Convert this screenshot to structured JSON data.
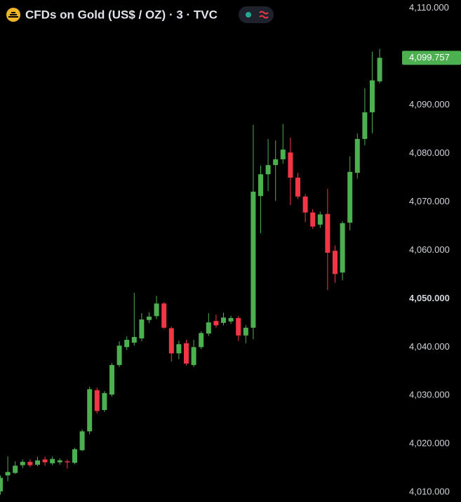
{
  "chart_data": {
    "type": "candlestick",
    "title": "CFDs on Gold (US$ / OZ) · 3 · TVC",
    "up_color": "#4caf50",
    "down_color": "#f23645",
    "ylim": [
      4008,
      4111.7
    ],
    "yticks": [
      {
        "value": 4110,
        "label": "4,110.000"
      },
      {
        "value": 4100,
        "label": "4,100.000"
      },
      {
        "value": 4090,
        "label": "4,090.000"
      },
      {
        "value": 4080,
        "label": "4,080.000"
      },
      {
        "value": 4070,
        "label": "4,070.000"
      },
      {
        "value": 4060,
        "label": "4,060.000"
      },
      {
        "value": 4050,
        "label": "4,050.000"
      },
      {
        "value": 4040,
        "label": "4,040.000"
      },
      {
        "value": 4030,
        "label": "4,030.000"
      },
      {
        "value": 4020,
        "label": "4,020.000"
      },
      {
        "value": 4010,
        "label": "4,010.000"
      }
    ],
    "last_price": {
      "value": 4099.757,
      "label": "4,099.757"
    },
    "open": [
      4010.2,
      4013.5,
      4014.0,
      4015.6,
      4016.3,
      4015.7,
      4016.8,
      4016.0,
      4016.2,
      4016.4,
      4016.1,
      4018.7,
      4022.6,
      4031.1,
      4027.0,
      4030.2,
      4036.3,
      4040.0,
      4040.9,
      4041.8,
      4045.6,
      4046.4,
      4049.0,
      4043.9,
      4038.7,
      4040.8,
      4036.3,
      4040.0,
      4042.8,
      4045.4,
      4045.0,
      4045.3,
      4046.0,
      4042.4,
      4044.0,
      4071.2,
      4075.7,
      4077.6,
      4078.8,
      4080.2,
      4075.0,
      4071.1,
      4067.8,
      4065.3,
      4067.5,
      4059.9,
      4055.4,
      4065.7,
      4076.0,
      4083.0,
      4088.5,
      4094.9
    ],
    "high": [
      4013.5,
      4017.4,
      4016.4,
      4016.8,
      4016.8,
      4017.3,
      4017.4,
      4017.4,
      4017.0,
      4016.8,
      4019.2,
      4023.0,
      4031.8,
      4031.6,
      4030.9,
      4036.7,
      4041.2,
      4042.2,
      4051.2,
      4047.0,
      4047.2,
      4050.6,
      4049.3,
      4044.2,
      4041.3,
      4041.5,
      4041.5,
      4043.3,
      4047.0,
      4046.7,
      4047.1,
      4046.5,
      4046.4,
      4044.5,
      4085.9,
      4077.5,
      4083.0,
      4082.7,
      4086.1,
      4083.3,
      4076.0,
      4071.6,
      4068.5,
      4068.0,
      4072.7,
      4061.0,
      4066.0,
      4079.4,
      4084.1,
      4093.5,
      4101.0,
      4101.6
    ],
    "low": [
      4009.5,
      4012.3,
      4013.8,
      4015.0,
      4015.2,
      4015.4,
      4015.5,
      4015.6,
      4015.7,
      4014.9,
      4015.8,
      4018.5,
      4022.0,
      4026.3,
      4026.6,
      4029.8,
      4035.9,
      4039.4,
      4040.3,
      4041.2,
      4045.0,
      4045.8,
      4043.8,
      4037.0,
      4037.5,
      4036.2,
      4035.9,
      4039.6,
      4042.3,
      4044.0,
      4044.5,
      4044.8,
      4041.3,
      4040.8,
      4041.6,
      4063.5,
      4072.2,
      4070.2,
      4077.9,
      4069.3,
      4070.6,
      4065.8,
      4064.4,
      4064.6,
      4051.8,
      4053.3,
      4053.8,
      4064.1,
      4074.8,
      4081.7,
      4084.2,
      4094.5
    ],
    "close": [
      4013.0,
      4014.2,
      4015.5,
      4016.3,
      4015.6,
      4016.6,
      4016.2,
      4016.9,
      4016.6,
      4016.2,
      4018.9,
      4022.6,
      4031.3,
      4026.8,
      4030.5,
      4036.3,
      4040.3,
      4041.5,
      4042.1,
      4045.7,
      4046.3,
      4049.0,
      4044.0,
      4038.7,
      4040.6,
      4036.6,
      4040.0,
      4042.9,
      4045.1,
      4044.5,
      4046.1,
      4046.0,
      4042.4,
      4044.0,
      4072.1,
      4075.7,
      4077.6,
      4078.8,
      4080.8,
      4075.0,
      4071.1,
      4067.8,
      4064.9,
      4067.4,
      4059.5,
      4055.1,
      4065.6,
      4076.2,
      4083.0,
      4088.5,
      4095.1,
      4099.757
    ]
  }
}
